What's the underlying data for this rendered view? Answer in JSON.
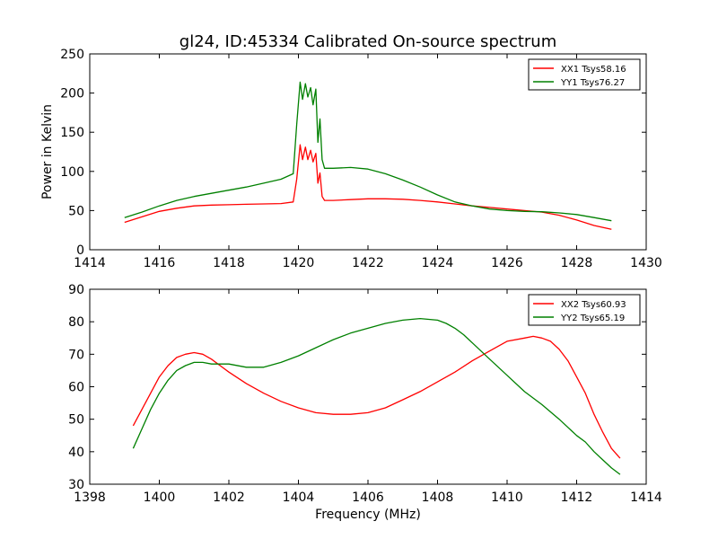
{
  "figure": {
    "title": "gl24, ID:45334 Calibrated On-source spectrum",
    "ylabel": "Power in Kelvin",
    "xlabel": "Frequency (MHz)"
  },
  "chart_data": [
    {
      "type": "line",
      "title": "gl24, ID:45334 Calibrated On-source spectrum",
      "xlabel": "",
      "ylabel": "Power in Kelvin",
      "xlim": [
        1414,
        1430
      ],
      "ylim": [
        0,
        250
      ],
      "xticks": [
        "1414",
        "1416",
        "1418",
        "1420",
        "1422",
        "1424",
        "1426",
        "1428",
        "1430"
      ],
      "yticks": [
        "0",
        "50",
        "100",
        "150",
        "200",
        "250"
      ],
      "grid": false,
      "legend_position": "top-right",
      "series": [
        {
          "name": "XX1 Tsys58.16",
          "color": "#ff0000",
          "x": [
            1415.0,
            1415.5,
            1416.0,
            1416.5,
            1417.0,
            1417.5,
            1418.0,
            1418.5,
            1419.0,
            1419.5,
            1419.85,
            1419.95,
            1420.05,
            1420.12,
            1420.2,
            1420.27,
            1420.35,
            1420.42,
            1420.5,
            1420.56,
            1420.62,
            1420.68,
            1420.75,
            1421.0,
            1421.5,
            1422.0,
            1422.5,
            1423.0,
            1423.5,
            1424.0,
            1424.5,
            1425.0,
            1425.5,
            1426.0,
            1426.5,
            1427.0,
            1427.5,
            1428.0,
            1428.5,
            1429.0
          ],
          "values": [
            35,
            42,
            49,
            53,
            56,
            57,
            57.5,
            58,
            58.5,
            59,
            61,
            90,
            134,
            115,
            131,
            115,
            127,
            112,
            123,
            85,
            98,
            68,
            63,
            63,
            64,
            65,
            65,
            64.5,
            63,
            61,
            58.5,
            56,
            54,
            52,
            50,
            48,
            44,
            38,
            31,
            26
          ]
        },
        {
          "name": "YY1 Tsys76.27",
          "color": "#008000",
          "x": [
            1415.0,
            1415.5,
            1416.0,
            1416.5,
            1417.0,
            1417.5,
            1418.0,
            1418.5,
            1419.0,
            1419.5,
            1419.85,
            1419.95,
            1420.05,
            1420.12,
            1420.2,
            1420.27,
            1420.35,
            1420.42,
            1420.5,
            1420.56,
            1420.62,
            1420.68,
            1420.75,
            1421.0,
            1421.5,
            1422.0,
            1422.5,
            1423.0,
            1423.5,
            1424.0,
            1424.5,
            1425.0,
            1425.5,
            1426.0,
            1426.5,
            1427.0,
            1427.5,
            1428.0,
            1428.5,
            1429.0
          ],
          "values": [
            41,
            48,
            56,
            63,
            68,
            72,
            76,
            80,
            85,
            90,
            97,
            160,
            214,
            192,
            212,
            195,
            207,
            185,
            205,
            137,
            167,
            115,
            104,
            104,
            105,
            103,
            97,
            89,
            80,
            70,
            61,
            56,
            52,
            50,
            49,
            48.5,
            47,
            45,
            41,
            37
          ]
        }
      ]
    },
    {
      "type": "line",
      "title": "",
      "xlabel": "Frequency (MHz)",
      "ylabel": "",
      "xlim": [
        1398,
        1414
      ],
      "ylim": [
        30,
        90
      ],
      "xticks": [
        "1398",
        "1400",
        "1402",
        "1404",
        "1406",
        "1408",
        "1410",
        "1412",
        "1414"
      ],
      "yticks": [
        "30",
        "40",
        "50",
        "60",
        "70",
        "80",
        "90"
      ],
      "grid": false,
      "legend_position": "top-right",
      "series": [
        {
          "name": "XX2 Tsys60.93",
          "color": "#ff0000",
          "x": [
            1399.25,
            1399.5,
            1399.75,
            1400.0,
            1400.25,
            1400.5,
            1400.75,
            1401.0,
            1401.25,
            1401.5,
            1401.75,
            1402.0,
            1402.5,
            1403.0,
            1403.5,
            1404.0,
            1404.5,
            1405.0,
            1405.5,
            1406.0,
            1406.5,
            1407.0,
            1407.5,
            1408.0,
            1408.5,
            1409.0,
            1409.5,
            1410.0,
            1410.5,
            1410.75,
            1411.0,
            1411.25,
            1411.5,
            1411.75,
            1412.0,
            1412.25,
            1412.5,
            1412.75,
            1413.0,
            1413.25
          ],
          "values": [
            48,
            53,
            58,
            63,
            66.5,
            69,
            70,
            70.5,
            70,
            68.5,
            66.5,
            64.5,
            61,
            58,
            55.5,
            53.5,
            52,
            51.5,
            51.5,
            52,
            53.5,
            56,
            58.5,
            61.5,
            64.5,
            68,
            71,
            74,
            75,
            75.5,
            75,
            74,
            71.5,
            68,
            63,
            58,
            51.5,
            46,
            41,
            38
          ]
        },
        {
          "name": "YY2 Tsys65.19",
          "color": "#008000",
          "x": [
            1399.25,
            1399.5,
            1399.75,
            1400.0,
            1400.25,
            1400.5,
            1400.75,
            1401.0,
            1401.25,
            1401.5,
            1401.75,
            1402.0,
            1402.5,
            1403.0,
            1403.5,
            1404.0,
            1404.5,
            1405.0,
            1405.5,
            1406.0,
            1406.5,
            1407.0,
            1407.5,
            1408.0,
            1408.25,
            1408.5,
            1408.75,
            1409.0,
            1409.5,
            1410.0,
            1410.5,
            1411.0,
            1411.5,
            1412.0,
            1412.25,
            1412.5,
            1412.75,
            1413.0,
            1413.25
          ],
          "values": [
            41,
            47,
            53,
            58,
            62,
            65,
            66.5,
            67.5,
            67.5,
            67,
            67,
            67,
            66,
            66,
            67.5,
            69.5,
            72,
            74.5,
            76.5,
            78,
            79.5,
            80.5,
            81,
            80.5,
            79.5,
            78,
            76,
            73.5,
            68.5,
            63.5,
            58.5,
            54.5,
            50,
            45,
            43,
            40,
            37.5,
            35,
            33
          ]
        }
      ]
    }
  ]
}
